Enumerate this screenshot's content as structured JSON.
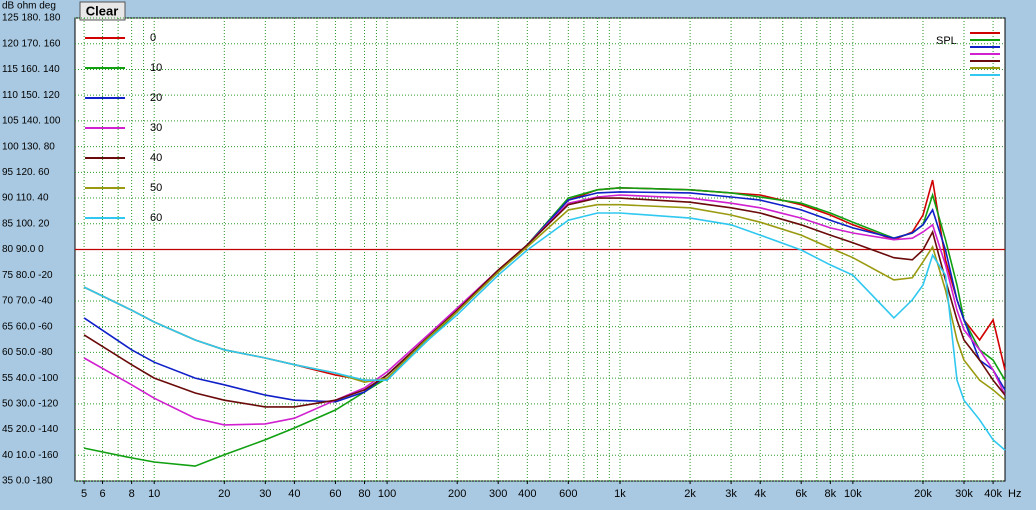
{
  "button": "Clear",
  "chart_data": {
    "type": "line",
    "y_units_header": "dB  ohm  deg",
    "x_unit": "Hz",
    "spl_label": "SPL",
    "reference_line": 80,
    "reference_color": "#c00000",
    "log_x": true,
    "grid": true,
    "xlim": [
      4.57,
      45000
    ],
    "ylim": [
      35,
      125
    ],
    "xgrid": [
      5,
      6,
      7,
      8,
      9,
      10,
      20,
      30,
      40,
      50,
      60,
      70,
      80,
      90,
      100,
      200,
      300,
      400,
      500,
      600,
      700,
      800,
      900,
      1000,
      2000,
      3000,
      4000,
      5000,
      6000,
      7000,
      8000,
      9000,
      10000,
      20000,
      30000,
      40000
    ],
    "xticks": [
      5,
      6,
      8,
      10,
      20,
      30,
      40,
      60,
      80,
      100,
      200,
      300,
      400,
      600,
      {
        "value": 1000,
        "label": "1k"
      },
      {
        "value": 2000,
        "label": "2k"
      },
      {
        "value": 3000,
        "label": "3k"
      },
      {
        "value": 4000,
        "label": "4k"
      },
      {
        "value": 6000,
        "label": "6k"
      },
      {
        "value": 8000,
        "label": "8k"
      },
      {
        "value": 10000,
        "label": "10k"
      },
      {
        "value": 20000,
        "label": "20k"
      },
      {
        "value": 30000,
        "label": "30k"
      },
      {
        "value": 40000,
        "label": "40k"
      }
    ],
    "yticks": [
      {
        "value": 125,
        "label": "125 180. 180"
      },
      {
        "value": 120,
        "label": "120 170. 160"
      },
      {
        "value": 115,
        "label": "115 160. 140"
      },
      {
        "value": 110,
        "label": "110 150. 120"
      },
      {
        "value": 105,
        "label": "105 140. 100"
      },
      {
        "value": 100,
        "label": "100 130. 80"
      },
      {
        "value": 95,
        "label": "95  120. 60"
      },
      {
        "value": 90,
        "label": "90  110. 40"
      },
      {
        "value": 85,
        "label": "85  100. 20"
      },
      {
        "value": 80,
        "label": "80  90.0 0"
      },
      {
        "value": 75,
        "label": "75  80.0 -20"
      },
      {
        "value": 70,
        "label": "70  70.0 -40"
      },
      {
        "value": 65,
        "label": "65  60.0 -60"
      },
      {
        "value": 60,
        "label": "60  50.0 -80"
      },
      {
        "value": 55,
        "label": "55  40.0 -100"
      },
      {
        "value": 50,
        "label": "50  30.0 -120"
      },
      {
        "value": 45,
        "label": "45  20.0 -140"
      },
      {
        "value": 40,
        "label": "40  10.0 -160"
      },
      {
        "value": 35,
        "label": "35  0.0  -180"
      }
    ],
    "x": [
      5,
      8,
      10,
      15,
      20,
      30,
      40,
      60,
      80,
      100,
      150,
      200,
      300,
      400,
      600,
      800,
      1000,
      2000,
      3000,
      4000,
      6000,
      8000,
      10000,
      15000,
      18000,
      20000,
      22000,
      25000,
      28000,
      30000,
      35000,
      40000,
      45000
    ],
    "series": [
      {
        "name": "0",
        "color": "#d00000",
        "values": [
          72.7,
          68.2,
          65.9,
          62.4,
          60.5,
          58.9,
          57.6,
          55.6,
          54.6,
          54.6,
          62.8,
          67.9,
          75.6,
          80.9,
          89.6,
          91.6,
          92.0,
          91.6,
          91.0,
          90.6,
          88.7,
          86.7,
          84.8,
          81.9,
          83.4,
          86.7,
          93.5,
          78.0,
          70.2,
          66.3,
          62.4,
          66.3,
          56.6
        ]
      },
      {
        "name": "10",
        "color": "#10a010",
        "values": [
          41.4,
          39.5,
          38.7,
          37.9,
          40.1,
          43.0,
          45.3,
          48.8,
          52.3,
          55.0,
          62.4,
          67.9,
          75.6,
          80.9,
          90.0,
          91.6,
          92.0,
          91.6,
          91.0,
          90.2,
          89.0,
          87.1,
          85.3,
          82.2,
          83.2,
          84.8,
          90.6,
          81.9,
          73.1,
          66.3,
          60.5,
          58.5,
          54.6
        ]
      },
      {
        "name": "20",
        "color": "#1020c8",
        "values": [
          66.7,
          60.5,
          58.1,
          55.0,
          53.7,
          51.7,
          50.7,
          50.4,
          52.3,
          55.6,
          62.8,
          67.9,
          75.6,
          80.9,
          89.6,
          91.0,
          91.2,
          91.0,
          90.2,
          89.6,
          87.7,
          85.7,
          84.2,
          82.2,
          83.2,
          84.8,
          87.7,
          79.9,
          70.2,
          66.3,
          58.5,
          56.6,
          52.7
        ]
      },
      {
        "name": "30",
        "color": "#d020d0",
        "values": [
          58.9,
          53.7,
          51.1,
          47.2,
          45.9,
          46.1,
          47.2,
          50.7,
          53.1,
          56.2,
          63.4,
          68.6,
          76.0,
          80.9,
          89.0,
          90.2,
          90.6,
          90.0,
          89.0,
          88.1,
          86.1,
          84.2,
          83.2,
          81.9,
          82.2,
          83.4,
          84.8,
          77.0,
          68.2,
          64.4,
          60.5,
          56.6,
          51.7
        ]
      },
      {
        "name": "40",
        "color": "#6a0a0a",
        "values": [
          63.4,
          57.6,
          55.0,
          52.1,
          50.7,
          49.4,
          49.4,
          50.7,
          52.7,
          55.6,
          63.0,
          68.2,
          76.0,
          80.9,
          88.7,
          90.0,
          90.0,
          89.2,
          88.1,
          87.1,
          84.8,
          82.8,
          81.3,
          78.4,
          78.0,
          79.9,
          83.4,
          74.1,
          66.3,
          62.4,
          58.5,
          54.6,
          51.7
        ]
      },
      {
        "name": "50",
        "color": "#9a9a10",
        "values": [
          72.7,
          68.2,
          65.9,
          62.4,
          60.5,
          58.9,
          57.6,
          56.0,
          54.2,
          55.0,
          62.8,
          67.9,
          75.6,
          80.5,
          87.7,
          88.7,
          88.7,
          88.1,
          86.7,
          85.3,
          82.8,
          80.3,
          78.4,
          74.1,
          74.5,
          77.6,
          80.5,
          72.1,
          62.4,
          58.5,
          54.6,
          52.7,
          50.7
        ]
      },
      {
        "name": "60",
        "color": "#30c8f0",
        "values": [
          72.7,
          68.2,
          65.9,
          62.4,
          60.5,
          58.9,
          57.6,
          56.0,
          54.6,
          54.6,
          62.4,
          67.3,
          75.0,
          79.9,
          85.7,
          87.1,
          87.1,
          86.1,
          84.8,
          82.8,
          79.9,
          77.0,
          75.0,
          66.7,
          70.2,
          73.1,
          78.9,
          75.0,
          54.6,
          50.7,
          46.9,
          43.0,
          41.0
        ]
      }
    ]
  }
}
